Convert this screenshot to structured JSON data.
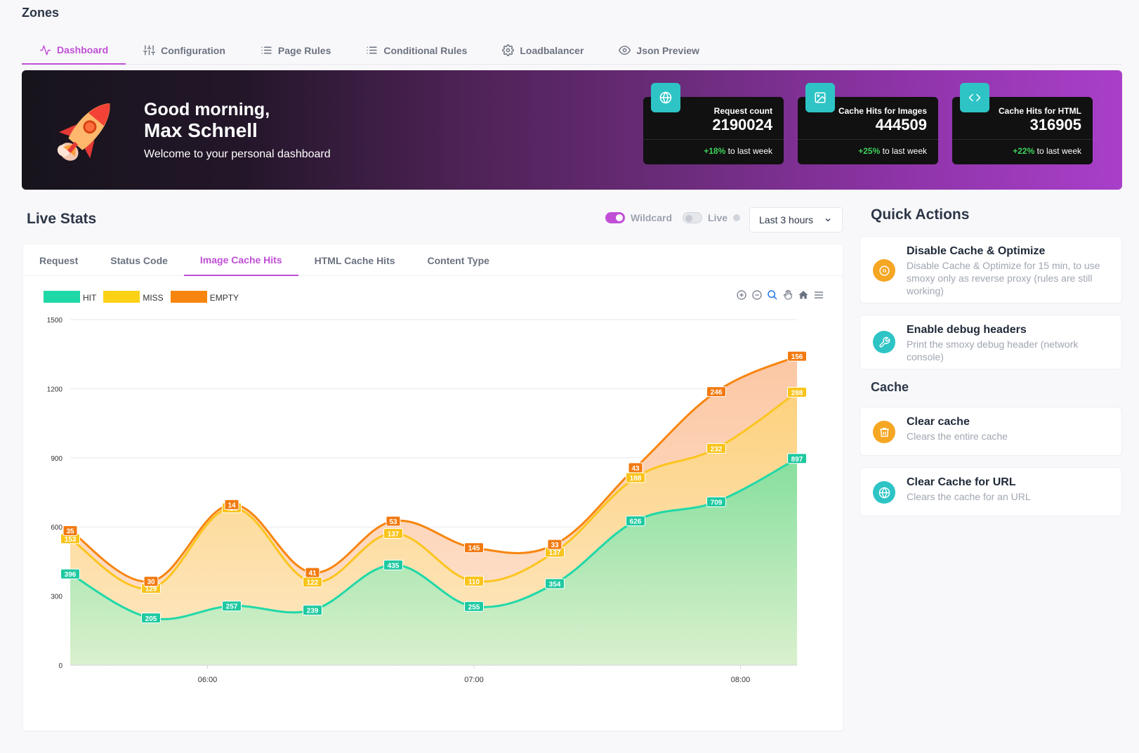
{
  "header": {
    "title": "Zones"
  },
  "nav": {
    "tabs": [
      {
        "label": "Dashboard",
        "icon": "activity-icon",
        "active": true
      },
      {
        "label": "Configuration",
        "icon": "sliders-icon"
      },
      {
        "label": "Page Rules",
        "icon": "list-icon"
      },
      {
        "label": "Conditional Rules",
        "icon": "list-icon"
      },
      {
        "label": "Loadbalancer",
        "icon": "gear-icon"
      },
      {
        "label": "Json Preview",
        "icon": "eye-icon"
      }
    ]
  },
  "banner": {
    "greeting": "Good morning,",
    "name": "Max Schnell",
    "subtitle": "Welcome to your personal dashboard",
    "stats": [
      {
        "label": "Request count",
        "value": "2190024",
        "change": "+18%",
        "suffix": "to last week",
        "icon": "globe-icon"
      },
      {
        "label": "Cache Hits for Images",
        "value": "444509",
        "change": "+25%",
        "suffix": "to last week",
        "icon": "image-icon"
      },
      {
        "label": "Cache Hits for HTML",
        "value": "316905",
        "change": "+22%",
        "suffix": "to last week",
        "icon": "code-icon"
      }
    ]
  },
  "live_stats": {
    "title": "Live Stats",
    "wildcard_label": "Wildcard",
    "wildcard_on": true,
    "live_label": "Live",
    "live_on": false,
    "range": "Last 3 hours",
    "tabs": [
      "Request",
      "Status Code",
      "Image Cache Hits",
      "HTML Cache Hits",
      "Content Type"
    ],
    "active_tab": "Image Cache Hits"
  },
  "chart_data": {
    "type": "area",
    "stacked": true,
    "curve": "smooth",
    "x_ticks": [
      "06:00",
      "07:00",
      "08:00"
    ],
    "y_ticks": [
      0,
      300,
      600,
      900,
      1200,
      1500
    ],
    "ylim": [
      0,
      1500
    ],
    "grid": true,
    "legend": "top-left",
    "series": [
      {
        "name": "HIT",
        "color": "#1fd8a8",
        "values": [
          396,
          205,
          257,
          239,
          435,
          255,
          354,
          626,
          709,
          897
        ]
      },
      {
        "name": "MISS",
        "color": "#fcd116",
        "values": [
          153,
          129,
          426,
          122,
          137,
          110,
          137,
          188,
          232,
          288
        ]
      },
      {
        "name": "EMPTY",
        "color": "#f7850f",
        "values": [
          35,
          30,
          14,
          41,
          53,
          145,
          33,
          43,
          246,
          156
        ]
      }
    ],
    "tick_positions": {
      "06:00": 1.7,
      "07:00": 5.0,
      "08:00": 8.3
    }
  },
  "quick_actions": {
    "title": "Quick Actions",
    "items": [
      {
        "name": "Disable Cache & Optimize",
        "desc": "Disable Cache & Optimize for 15 min, to use smoxy only as reverse proxy (rules are still working)",
        "icon": "pause-icon",
        "color": "#f5a623"
      },
      {
        "name": "Enable debug headers",
        "desc": "Print the smoxy debug header (network console)",
        "icon": "wrench-icon",
        "color": "#2ec4c6"
      }
    ],
    "cache_title": "Cache",
    "cache_items": [
      {
        "name": "Clear cache",
        "desc": "Clears the entire cache",
        "icon": "trash-icon",
        "color": "#f5a623"
      },
      {
        "name": "Clear Cache for URL",
        "desc": "Clears the cache for an URL",
        "icon": "globe-icon",
        "color": "#2ec4c6"
      }
    ]
  }
}
